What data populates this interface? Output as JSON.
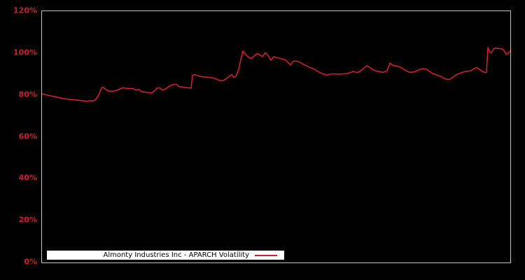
{
  "colors": {
    "background": "#000000",
    "plot_border": "#c4c4c4",
    "tick_label": "#cf1f26",
    "line": "#d0202a",
    "legend_bg": "#ffffff",
    "legend_text": "#000000"
  },
  "legend": {
    "label": "Almonty Industries Inc - APARCH Volatility"
  },
  "chart_data": {
    "type": "line",
    "title": "",
    "xlabel": "",
    "ylabel": "",
    "ylim": [
      0,
      120
    ],
    "yticks": [
      {
        "label": "0%",
        "value": 0
      },
      {
        "label": "20%",
        "value": 20
      },
      {
        "label": "40%",
        "value": 40
      },
      {
        "label": "60%",
        "value": 60
      },
      {
        "label": "80%",
        "value": 80
      },
      {
        "label": "100%",
        "value": 100
      },
      {
        "label": "120%",
        "value": 120
      }
    ],
    "x_axis_note": "time axis, no tick labels shown",
    "grid": false,
    "legend_position": "bottom-left inside plot",
    "series": [
      {
        "name": "Almonty Industries Inc - APARCH Volatility",
        "color": "#d0202a",
        "unit": "percent",
        "points": [
          [
            0,
            80.5
          ],
          [
            11,
            79.7
          ],
          [
            21,
            79.0
          ],
          [
            31,
            78.3
          ],
          [
            41,
            77.8
          ],
          [
            51,
            77.5
          ],
          [
            61,
            77.1
          ],
          [
            65,
            77.0
          ],
          [
            69,
            77.3
          ],
          [
            73,
            77.1
          ],
          [
            77,
            77.9
          ],
          [
            81,
            80.0
          ],
          [
            85,
            83.4
          ],
          [
            88,
            83.6
          ],
          [
            92,
            82.3
          ],
          [
            97,
            81.8
          ],
          [
            103,
            81.9
          ],
          [
            109,
            82.5
          ],
          [
            115,
            83.4
          ],
          [
            120,
            83.2
          ],
          [
            125,
            83.1
          ],
          [
            130,
            83.0
          ],
          [
            134,
            82.4
          ],
          [
            138,
            82.7
          ],
          [
            142,
            81.7
          ],
          [
            147,
            81.4
          ],
          [
            152,
            81.1
          ],
          [
            157,
            81.0
          ],
          [
            161,
            82.0
          ],
          [
            164,
            83.2
          ],
          [
            168,
            83.4
          ],
          [
            172,
            82.3
          ],
          [
            177,
            83.0
          ],
          [
            182,
            84.2
          ],
          [
            188,
            85.1
          ],
          [
            192,
            85.0
          ],
          [
            196,
            84.0
          ],
          [
            201,
            83.8
          ],
          [
            206,
            83.5
          ],
          [
            211,
            83.3
          ],
          [
            213,
            83.3
          ],
          [
            215,
            89.4
          ],
          [
            218,
            89.7
          ],
          [
            223,
            89.2
          ],
          [
            229,
            88.7
          ],
          [
            235,
            88.5
          ],
          [
            241,
            88.3
          ],
          [
            247,
            87.9
          ],
          [
            253,
            87.0
          ],
          [
            257,
            86.7
          ],
          [
            261,
            87.3
          ],
          [
            265,
            88.2
          ],
          [
            269,
            89.3
          ],
          [
            271,
            89.7
          ],
          [
            274,
            88.4
          ],
          [
            277,
            89.0
          ],
          [
            281,
            92.0
          ],
          [
            284,
            97.0
          ],
          [
            287,
            101.0
          ],
          [
            291,
            99.3
          ],
          [
            295,
            98.0
          ],
          [
            299,
            97.4
          ],
          [
            303,
            98.6
          ],
          [
            307,
            99.8
          ],
          [
            311,
            99.2
          ],
          [
            315,
            98.3
          ],
          [
            319,
            100.1
          ],
          [
            323,
            98.9
          ],
          [
            327,
            96.6
          ],
          [
            331,
            98.3
          ],
          [
            335,
            97.9
          ],
          [
            339,
            97.6
          ],
          [
            343,
            97.2
          ],
          [
            347,
            96.9
          ],
          [
            351,
            95.6
          ],
          [
            355,
            94.4
          ],
          [
            359,
            96.1
          ],
          [
            363,
            96.2
          ],
          [
            367,
            95.9
          ],
          [
            371,
            95.1
          ],
          [
            375,
            94.4
          ],
          [
            379,
            93.7
          ],
          [
            383,
            93.1
          ],
          [
            387,
            92.6
          ],
          [
            391,
            91.9
          ],
          [
            395,
            91.1
          ],
          [
            399,
            90.4
          ],
          [
            403,
            89.9
          ],
          [
            407,
            89.4
          ],
          [
            411,
            89.9
          ],
          [
            416,
            90.1
          ],
          [
            421,
            90.0
          ],
          [
            426,
            89.9
          ],
          [
            431,
            90.1
          ],
          [
            436,
            90.3
          ],
          [
            441,
            90.8
          ],
          [
            445,
            91.3
          ],
          [
            449,
            90.7
          ],
          [
            453,
            91.0
          ],
          [
            457,
            92.0
          ],
          [
            461,
            93.2
          ],
          [
            464,
            94.0
          ],
          [
            469,
            93.0
          ],
          [
            473,
            92.0
          ],
          [
            477,
            91.5
          ],
          [
            481,
            91.2
          ],
          [
            487,
            90.8
          ],
          [
            493,
            91.5
          ],
          [
            497,
            95.2
          ],
          [
            501,
            94.2
          ],
          [
            505,
            93.9
          ],
          [
            509,
            93.6
          ],
          [
            513,
            93.1
          ],
          [
            517,
            92.2
          ],
          [
            521,
            91.5
          ],
          [
            525,
            90.8
          ],
          [
            529,
            90.9
          ],
          [
            533,
            91.2
          ],
          [
            537,
            91.8
          ],
          [
            541,
            92.3
          ],
          [
            545,
            92.6
          ],
          [
            549,
            92.3
          ],
          [
            553,
            91.5
          ],
          [
            557,
            90.4
          ],
          [
            561,
            89.9
          ],
          [
            565,
            89.4
          ],
          [
            569,
            88.9
          ],
          [
            573,
            88.2
          ],
          [
            577,
            87.6
          ],
          [
            581,
            87.3
          ],
          [
            585,
            88.0
          ],
          [
            589,
            89.0
          ],
          [
            593,
            89.8
          ],
          [
            597,
            90.4
          ],
          [
            601,
            90.9
          ],
          [
            605,
            91.2
          ],
          [
            609,
            91.4
          ],
          [
            613,
            91.6
          ],
          [
            617,
            92.6
          ],
          [
            621,
            93.1
          ],
          [
            625,
            92.2
          ],
          [
            629,
            91.3
          ],
          [
            633,
            90.7
          ],
          [
            635,
            90.8
          ],
          [
            637,
            102.7
          ],
          [
            640,
            100.3
          ],
          [
            642,
            100.1
          ],
          [
            645,
            102.0
          ],
          [
            648,
            102.4
          ],
          [
            652,
            102.2
          ],
          [
            656,
            102.1
          ],
          [
            660,
            101.3
          ],
          [
            663,
            99.4
          ],
          [
            666,
            99.9
          ],
          [
            669,
            101.0
          ]
        ]
      }
    ]
  }
}
